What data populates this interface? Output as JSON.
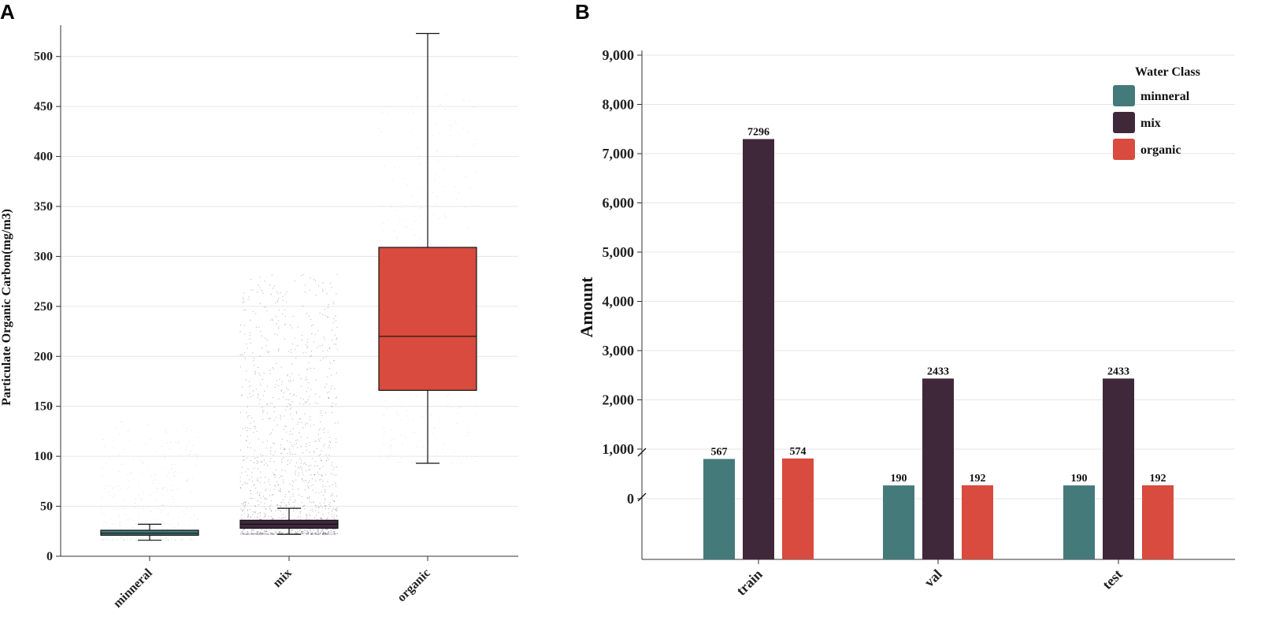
{
  "colors": {
    "mineral": "#457a7b",
    "mix": "#40283b",
    "organic": "#d84b3e",
    "grid": "#e6e6e6",
    "axis": "#333333"
  },
  "chart_data": [
    {
      "panel": "A",
      "type": "box",
      "ylabel": "Particulate Organic Carbon(mg/m3)",
      "xlabel": "",
      "ylim": [
        0,
        525
      ],
      "yticks": [
        0,
        50,
        100,
        150,
        200,
        250,
        300,
        350,
        400,
        450,
        500
      ],
      "grid": true,
      "categories": [
        "minneral",
        "mix",
        "organic"
      ],
      "boxes": [
        {
          "category": "minneral",
          "whisker_low": 16,
          "q1": 21,
          "median": 23,
          "q3": 26,
          "whisker_high": 32,
          "color_key": "mineral"
        },
        {
          "category": "mix",
          "whisker_low": 22,
          "q1": 28,
          "median": 32,
          "q3": 36,
          "whisker_high": 48,
          "color_key": "mix"
        },
        {
          "category": "organic",
          "whisker_low": 93,
          "q1": 166,
          "median": 220,
          "q3": 309,
          "whisker_high": 523,
          "color_key": "organic"
        }
      ]
    },
    {
      "panel": "B",
      "type": "bar",
      "ylabel": "Amount",
      "xlabel": "",
      "yticks": [
        0,
        1000,
        2000,
        3000,
        4000,
        5000,
        6000,
        7000,
        8000,
        9000
      ],
      "ytick_labels": [
        "0",
        "1,000",
        "2,000",
        "3,000",
        "4,000",
        "5,000",
        "6,000",
        "7,000",
        "8,000",
        "9,000"
      ],
      "grid": true,
      "axis_break": "between 0 and 1,000",
      "categories": [
        "train",
        "val",
        "test"
      ],
      "series": [
        {
          "name": "minneral",
          "color_key": "mineral",
          "values": [
            567,
            190,
            190
          ]
        },
        {
          "name": "mix",
          "color_key": "mix",
          "values": [
            7296,
            2433,
            2433
          ]
        },
        {
          "name": "organic",
          "color_key": "organic",
          "values": [
            574,
            192,
            192
          ]
        }
      ],
      "legend_title": "Water Class",
      "legend_position": "top-right"
    }
  ]
}
